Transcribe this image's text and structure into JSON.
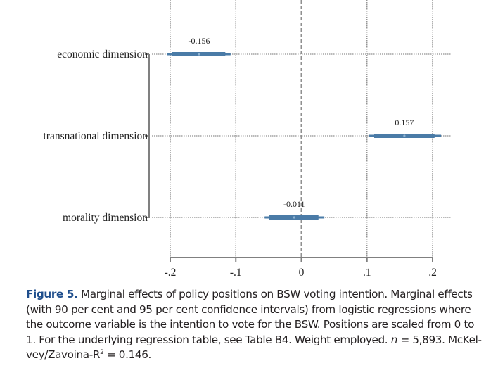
{
  "chart_data": {
    "type": "coefficient-plot",
    "title": "",
    "xlabel": "",
    "ylabel": "",
    "xlim": [
      -0.2,
      0.2
    ],
    "xticks": [
      -0.2,
      -0.1,
      0,
      0.1,
      0.2
    ],
    "xtick_labels": [
      "-.2",
      "-.1",
      "0",
      ".1",
      ".2"
    ],
    "reference_line": 0,
    "grid": "dotted vertical and horizontal",
    "categories": [
      "economic dimension",
      "transnational dimension",
      "morality dimension"
    ],
    "series": [
      {
        "name": "economic dimension",
        "estimate": -0.156,
        "label": "-0.156",
        "ci90": [
          -0.197,
          -0.116
        ],
        "ci95": [
          -0.205,
          -0.108
        ]
      },
      {
        "name": "transnational dimension",
        "estimate": 0.157,
        "label": "0.157",
        "ci90": [
          0.111,
          0.203
        ],
        "ci95": [
          0.103,
          0.213
        ]
      },
      {
        "name": "morality dimension",
        "estimate": -0.011,
        "label": "-0.011",
        "ci90": [
          -0.049,
          0.026
        ],
        "ci95": [
          -0.056,
          0.035
        ]
      }
    ],
    "colors": {
      "ci": "#4a7ba7",
      "axis": "#808080",
      "grid": "#909090"
    }
  },
  "caption": {
    "figure_label": "Figure 5.",
    "text_part1": " Marginal effects of policy positions on BSW voting intention. Marginal effects (with 90 per cent and 95 per cent confidence intervals) from logistic regressions where the outcome variable is the intention to vote for the BSW. Positions are scaled from 0 to 1. For the underlying regression table, see Table B4. Weight employed. ",
    "n_symbol": "n",
    "text_part2": " = 5,893. McKel-vey/Zavoina-R",
    "superscript": "2",
    "text_part3": " = 0.146."
  }
}
